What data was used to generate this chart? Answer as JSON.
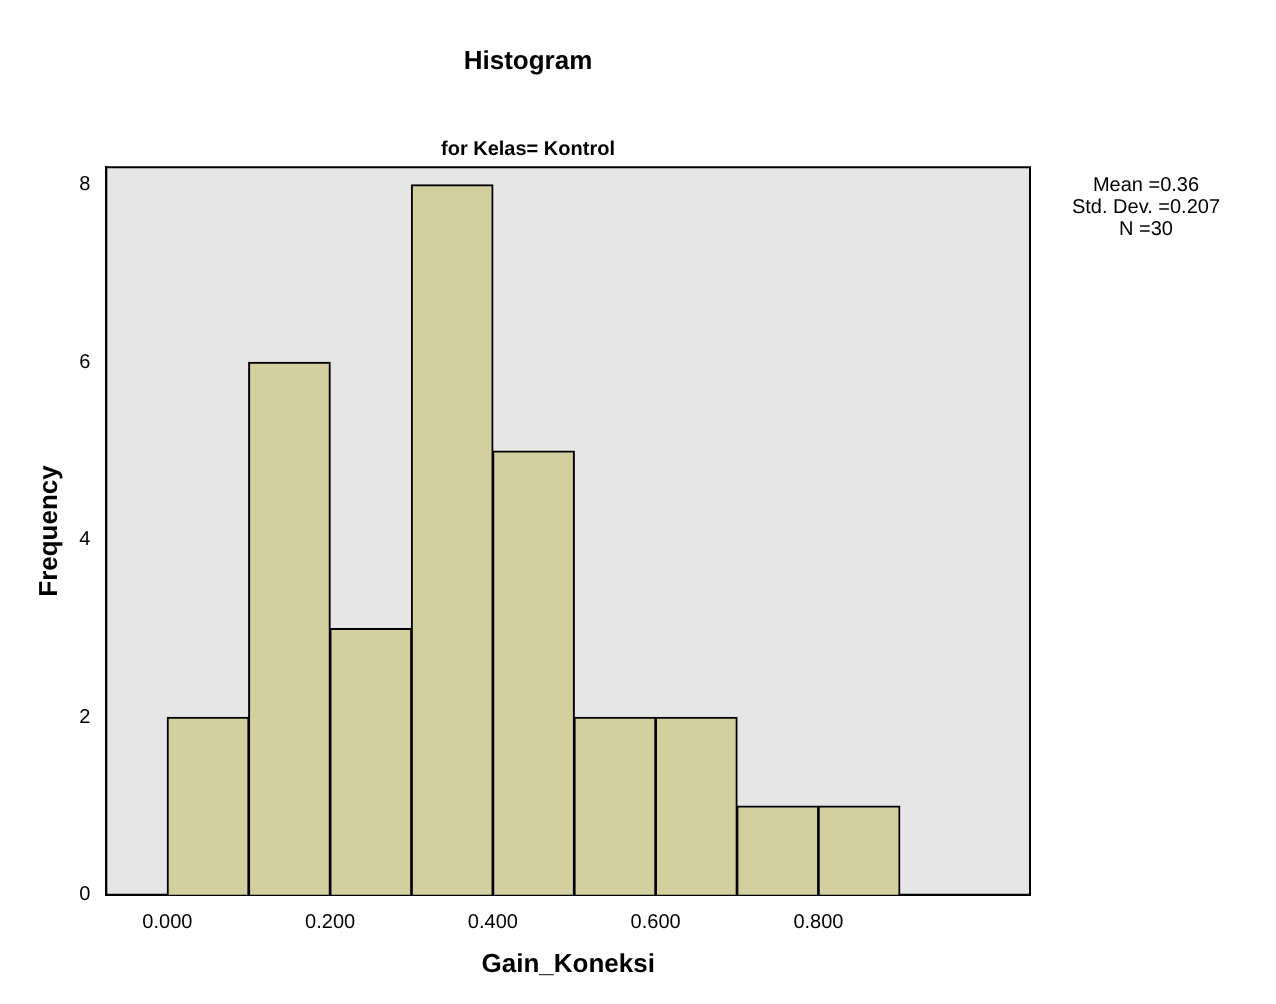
{
  "chart_data": {
    "type": "histogram",
    "title": "Histogram",
    "subtitle": "for Kelas= Kontrol",
    "xlabel": "Gain_Koneksi",
    "ylabel": "Frequency",
    "bins": [
      0.0,
      0.1,
      0.2,
      0.3,
      0.4,
      0.5,
      0.6,
      0.7,
      0.8,
      0.9
    ],
    "values": [
      2,
      6,
      3,
      8,
      5,
      2,
      2,
      1,
      1
    ],
    "color": "#d3cf9f",
    "xlim": [
      -0.075,
      1.06
    ],
    "xticks": [
      {
        "value": 0,
        "label": "0.000"
      },
      {
        "value": 0.2,
        "label": "0.200"
      },
      {
        "value": 0.4,
        "label": "0.400"
      },
      {
        "value": 0.6,
        "label": "0.600"
      },
      {
        "value": 0.8,
        "label": "0.800"
      }
    ],
    "ylim": [
      0,
      8.2
    ],
    "yticks": [
      0,
      2,
      4,
      6,
      8
    ],
    "grid": false,
    "legend": false,
    "annotations": [
      "Mean =0.36",
      "Std. Dev. =0.207",
      "N =30"
    ]
  }
}
